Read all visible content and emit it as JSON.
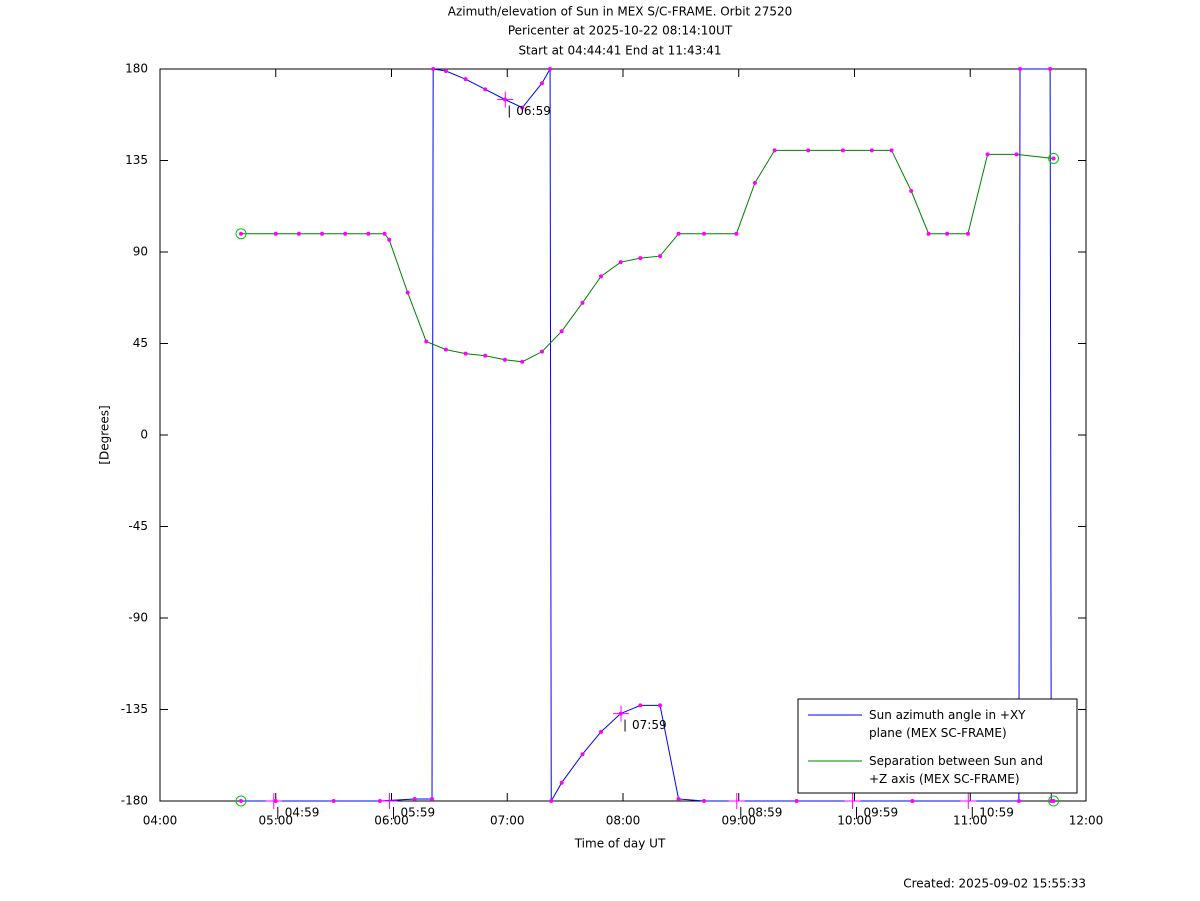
{
  "chart_data": {
    "type": "line",
    "title": "Azimuth/elevation of Sun in MEX S/C-FRAME.  Orbit 27520",
    "subtitle": [
      "Pericenter at 2025-10-22 08:14:10UT",
      "Start at 04:44:41 End at 11:43:41"
    ],
    "xlabel": "Time of day UT",
    "ylabel": "[Degrees]",
    "footer": "Created: 2025-09-02 15:55:33",
    "xlim": [
      4,
      12
    ],
    "xticks": [
      {
        "value": 4,
        "label": "04:00"
      },
      {
        "value": 5,
        "label": "05:00"
      },
      {
        "value": 6,
        "label": "06:00"
      },
      {
        "value": 7,
        "label": "07:00"
      },
      {
        "value": 8,
        "label": "08:00"
      },
      {
        "value": 9,
        "label": "09:00"
      },
      {
        "value": 10,
        "label": "10:00"
      },
      {
        "value": 11,
        "label": "11:00"
      },
      {
        "value": 12,
        "label": "12:00"
      }
    ],
    "ylim": [
      -180,
      180
    ],
    "yticks": [
      -180,
      -135,
      -90,
      -45,
      0,
      45,
      90,
      135,
      180
    ],
    "grid": false,
    "legend": "lower right",
    "marker_color": "#ff00ff",
    "endpoint_color": "#00cc00",
    "series": [
      {
        "name": "Sun azimuth angle in +XY plane (MEX SC-FRAME)",
        "color": "#0000ff",
        "x": [
          4.7,
          5.0,
          5.5,
          5.9,
          6.2,
          6.35,
          6.36,
          6.47,
          6.64,
          6.81,
          6.98,
          7.13,
          7.3,
          7.37,
          7.38,
          7.47,
          7.65,
          7.81,
          7.98,
          8.15,
          8.32,
          8.48,
          8.7,
          9.5,
          10.5,
          11.42,
          11.43,
          11.69,
          11.7,
          11.72
        ],
        "values": [
          -180,
          -180,
          -180,
          -180,
          -179,
          -179,
          180,
          179,
          175,
          170,
          165,
          161,
          173,
          180,
          -180,
          -171,
          -157,
          -146,
          -137,
          -133,
          -133,
          -179,
          -180,
          -180,
          -180,
          -180,
          180,
          180,
          -180,
          -180
        ]
      },
      {
        "name": "Separation between Sun and +Z axis (MEX SC-FRAME)",
        "color": "#008000",
        "x": [
          4.7,
          5.0,
          5.2,
          5.4,
          5.6,
          5.8,
          5.94,
          5.98,
          6.14,
          6.3,
          6.47,
          6.64,
          6.81,
          6.98,
          7.13,
          7.3,
          7.47,
          7.65,
          7.81,
          7.98,
          8.15,
          8.32,
          8.48,
          8.7,
          8.98,
          9.14,
          9.31,
          9.6,
          9.9,
          10.15,
          10.32,
          10.49,
          10.64,
          10.8,
          10.98,
          11.15,
          11.4,
          11.72
        ],
        "values": [
          99,
          99,
          99,
          99,
          99,
          99,
          99,
          96,
          70,
          46,
          42,
          40,
          39,
          37,
          36,
          41,
          51,
          65,
          78,
          85,
          87,
          88,
          99,
          99,
          99,
          124,
          140,
          140,
          140,
          140,
          140,
          120,
          99,
          99,
          99,
          138,
          138,
          136
        ]
      }
    ],
    "annotations": [
      {
        "text": "04:59",
        "x": 4.983,
        "y": -180
      },
      {
        "text": "05:59",
        "x": 5.983,
        "y": -180
      },
      {
        "text": "06:59",
        "x": 6.983,
        "y": 165
      },
      {
        "text": "07:59",
        "x": 7.983,
        "y": -137
      },
      {
        "text": "08:59",
        "x": 8.983,
        "y": -180
      },
      {
        "text": "09:59",
        "x": 9.983,
        "y": -180
      },
      {
        "text": "10:59",
        "x": 10.983,
        "y": -180
      }
    ]
  }
}
